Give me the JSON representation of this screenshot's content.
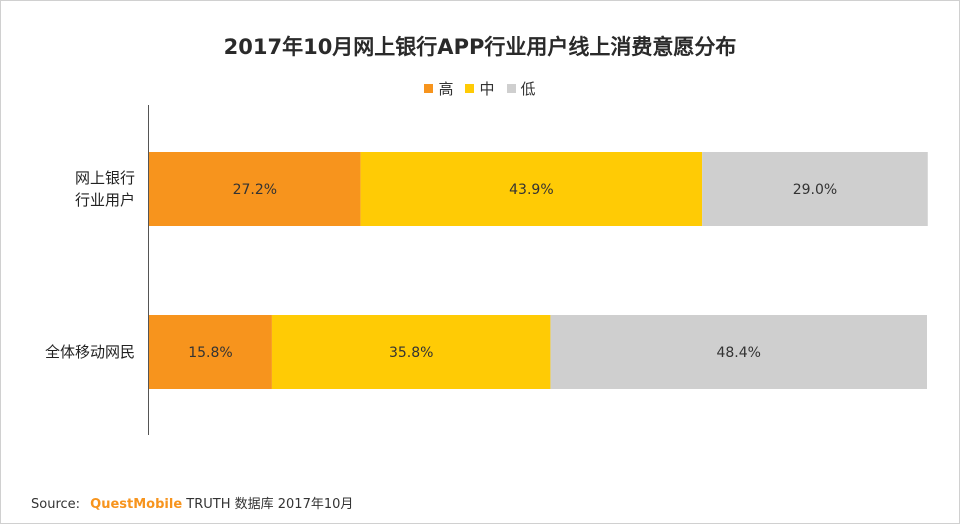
{
  "colors": {
    "high": "#f7941d",
    "mid": "#ffcb05",
    "low": "#cfcfcf",
    "axis": "#555555"
  },
  "chart_data": {
    "type": "bar",
    "orientation": "horizontal",
    "stacked": true,
    "percent": true,
    "title": "2017年10月网上银行APP行业用户线上消费意愿分布",
    "categories": [
      "网上银行\n行业用户",
      "全体移动网民"
    ],
    "series": [
      {
        "name": "高",
        "values": [
          27.2,
          15.8
        ],
        "labels": [
          "27.2%",
          "15.8%"
        ],
        "color": "#f7941d"
      },
      {
        "name": "中",
        "values": [
          43.9,
          35.8
        ],
        "labels": [
          "43.9%",
          "35.8%"
        ],
        "color": "#ffcb05"
      },
      {
        "name": "低",
        "values": [
          29.0,
          48.4
        ],
        "labels": [
          "29.0%",
          "48.4%"
        ],
        "color": "#cfcfcf"
      }
    ],
    "xlim": [
      0,
      100
    ],
    "grid": false,
    "legend_position": "top-center"
  },
  "source": {
    "prefix": "Source:",
    "brand": "QuestMobile",
    "text": "TRUTH 数据库 2017年10月"
  }
}
